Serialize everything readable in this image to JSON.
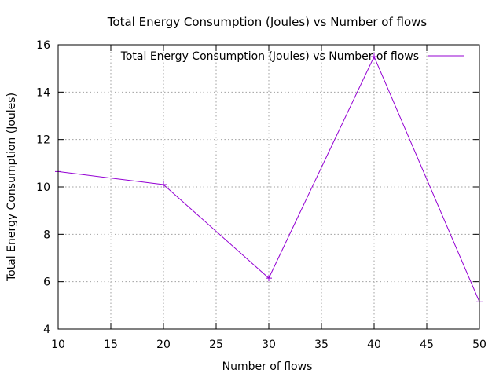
{
  "chart_data": {
    "type": "line",
    "title": "Total Energy Consumption (Joules) vs Number of flows",
    "xlabel": "Number of flows",
    "ylabel": "Total Energy Consumption (Joules)",
    "xlim": [
      10,
      50
    ],
    "ylim": [
      4,
      16
    ],
    "xticks": [
      10,
      15,
      20,
      25,
      30,
      35,
      40,
      45,
      50
    ],
    "yticks": [
      4,
      6,
      8,
      10,
      12,
      14,
      16
    ],
    "grid": true,
    "legend_position": "top-right",
    "series": [
      {
        "name": "Total Energy Consumption (Joules) vs Number of flows",
        "color": "#9400d3",
        "marker": "plus",
        "x": [
          10,
          20,
          30,
          40,
          50
        ],
        "y": [
          10.65,
          10.1,
          6.15,
          15.5,
          5.15
        ]
      }
    ]
  }
}
